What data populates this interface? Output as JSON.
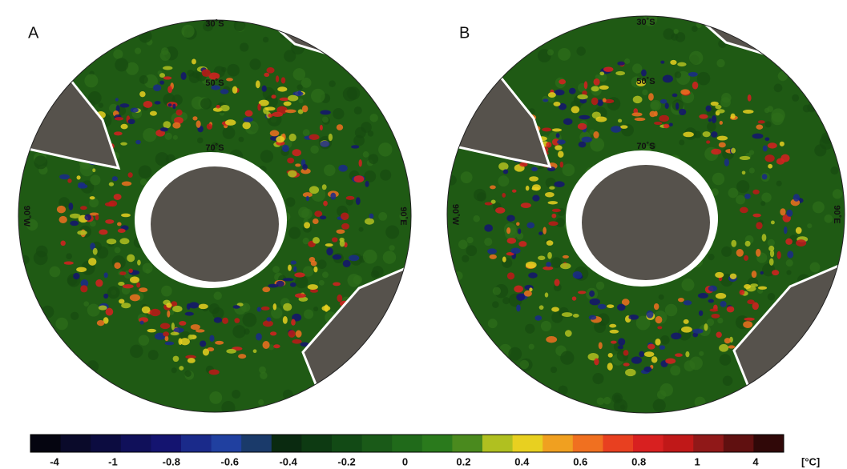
{
  "panels": [
    {
      "label": "A",
      "lat_labels": [
        "30˚S",
        "50˚S",
        "70˚S"
      ],
      "lon_labels": [
        "90˚W",
        "90˚E"
      ]
    },
    {
      "label": "B",
      "lat_labels": [
        "30˚S",
        "50˚S",
        "70˚S"
      ],
      "lon_labels": [
        "90˚W",
        "90˚E"
      ]
    }
  ],
  "colorbar": {
    "ticks": [
      "-4",
      "-1",
      "-0.8",
      "-0.6",
      "-0.4",
      "-0.2",
      "0",
      "0.2",
      "0.4",
      "0.6",
      "0.8",
      "1",
      "4"
    ],
    "unit": "[°C]",
    "colors": [
      "#050510",
      "#0a0a2a",
      "#0c0c40",
      "#10105a",
      "#141470",
      "#1a2a8a",
      "#2040a0",
      "#1a3a6a",
      "#0a2a10",
      "#0d3a12",
      "#124a15",
      "#1a5a18",
      "#206a1a",
      "#2a7a1c",
      "#4a8a1e",
      "#b0c020",
      "#e8d020",
      "#f0a020",
      "#f07020",
      "#e84020",
      "#d82020",
      "#c01818",
      "#901818",
      "#601010",
      "#300808"
    ]
  }
}
